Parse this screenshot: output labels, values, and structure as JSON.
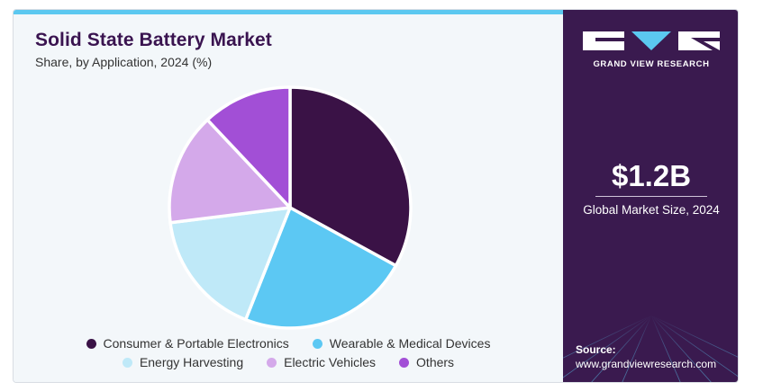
{
  "header": {
    "title": "Solid State Battery Market",
    "subtitle": "Share, by Application, 2024 (%)"
  },
  "chart_data": {
    "type": "pie",
    "title": "Solid State Battery Market",
    "subtitle": "Share, by Application, 2024 (%)",
    "categories": [
      "Consumer & Portable Electronics",
      "Wearable & Medical Devices",
      "Energy Harvesting",
      "Electric Vehicles",
      "Others"
    ],
    "values": [
      33,
      23,
      17,
      15,
      12
    ],
    "colors": [
      "#3a1246",
      "#5cc8f3",
      "#bfe9f8",
      "#d4a9ea",
      "#a24fd6"
    ],
    "start_angle_deg": 0,
    "direction": "clockwise",
    "legend": "bottom"
  },
  "legend": {
    "row1": [
      "Consumer & Portable Electronics",
      "Wearable & Medical Devices"
    ],
    "row2": [
      "Energy Harvesting",
      "Electric Vehicles",
      "Others"
    ]
  },
  "sidebar": {
    "brand": "GRAND VIEW RESEARCH",
    "market_size": "$1.2B",
    "market_caption": "Global Market Size, 2024",
    "source_label": "Source:",
    "source_url": "www.grandviewresearch.com",
    "background": "#3a1a4f"
  }
}
